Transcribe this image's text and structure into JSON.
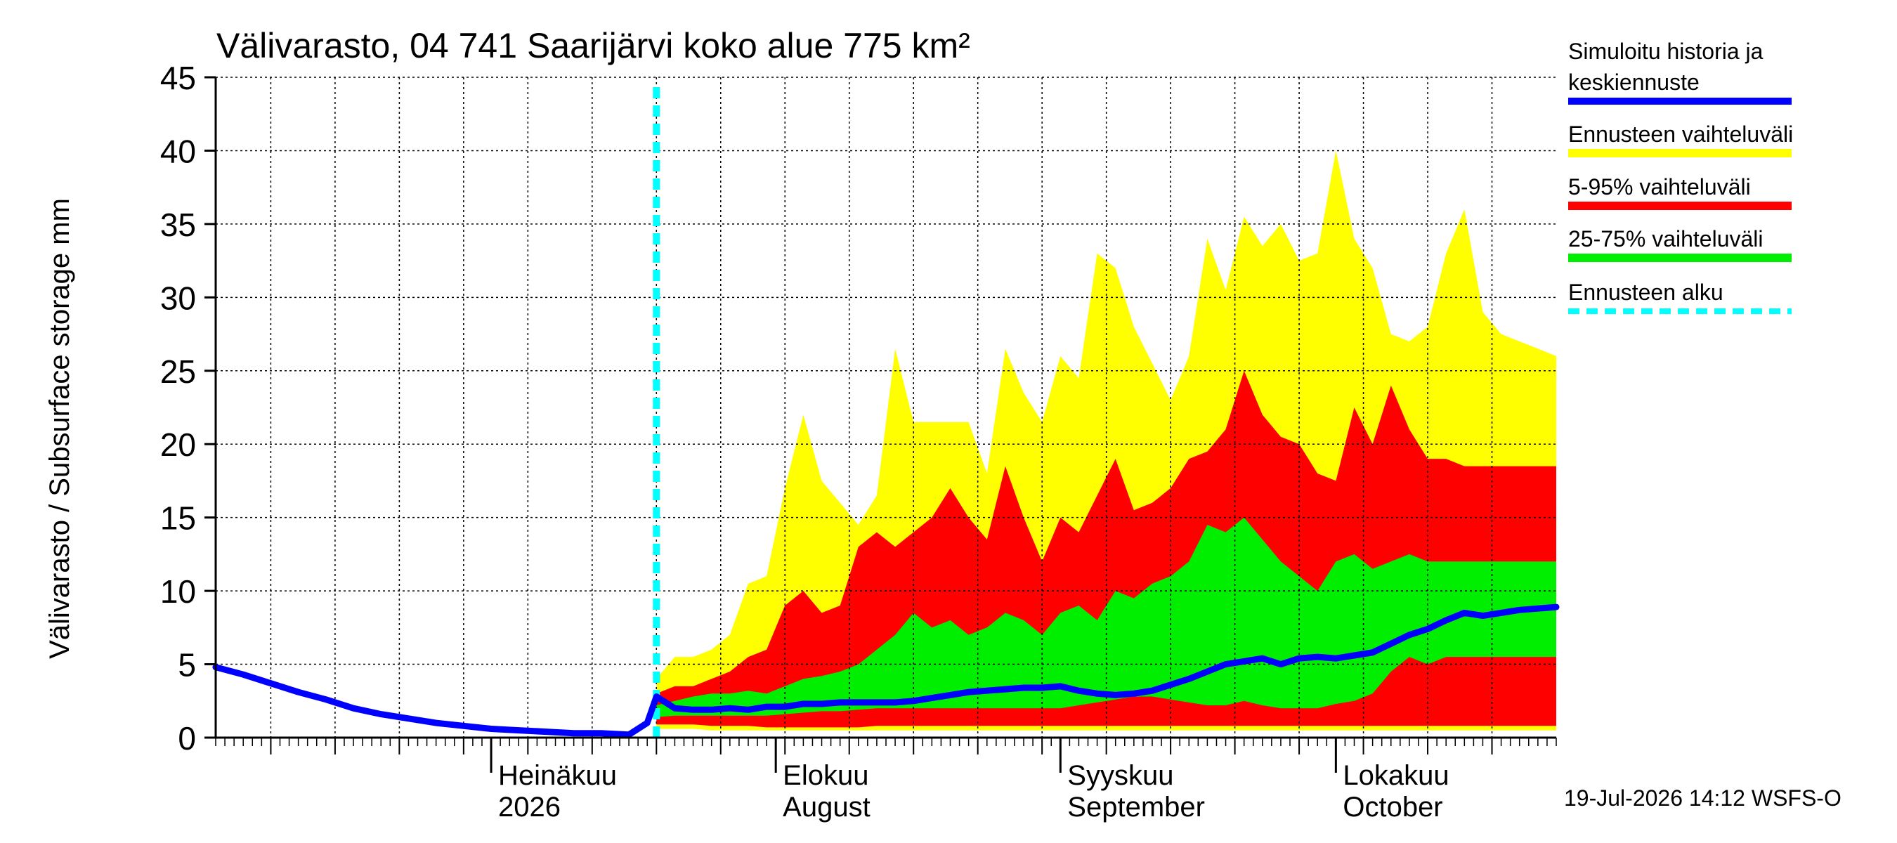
{
  "chart_data": {
    "type": "area",
    "title": "Välivarasto, 04 741 Saarijärvi koko alue 775 km²",
    "ylabel": "Välivarasto / Subsurface storage  mm",
    "ylim": [
      0,
      45
    ],
    "yticks": [
      "0",
      "5",
      "10",
      "15",
      "20",
      "25",
      "30",
      "35",
      "40",
      "45"
    ],
    "xlim": [
      "2026-06-01",
      "2026-10-25"
    ],
    "grid": true,
    "legend_position": "right",
    "forecast_start": "2026-07-19",
    "month_labels": [
      {
        "date": "2026-07-01",
        "line1": "Heinäkuu",
        "line2": "2026"
      },
      {
        "date": "2026-08-01",
        "line1": "Elokuu",
        "line2": "August"
      },
      {
        "date": "2026-09-01",
        "line1": "Syyskuu",
        "line2": "September"
      },
      {
        "date": "2026-10-01",
        "line1": "Lokakuu",
        "line2": "October"
      }
    ],
    "legend": [
      {
        "label": "Simuloitu historia ja",
        "label2": "keskiennuste",
        "color": "#0000ff",
        "style": "solid"
      },
      {
        "label": "Ennusteen vaihteluväli",
        "color": "#ffff00",
        "style": "solid"
      },
      {
        "label": "5-95% vaihteluväli",
        "color": "#ff0000",
        "style": "solid"
      },
      {
        "label": "25-75% vaihteluväli",
        "color": "#00ee00",
        "style": "solid"
      },
      {
        "label": "Ennusteen alku",
        "color": "#00ffff",
        "style": "dashed"
      }
    ],
    "colors": {
      "history": "#0000ff",
      "range_full": "#ffff00",
      "range_5_95": "#ff0000",
      "range_25_75": "#00ee00",
      "forecast_start": "#00ffff"
    },
    "x": [
      "2026-07-19",
      "2026-07-21",
      "2026-07-23",
      "2026-07-25",
      "2026-07-27",
      "2026-07-29",
      "2026-07-31",
      "2026-08-02",
      "2026-08-04",
      "2026-08-06",
      "2026-08-08",
      "2026-08-10",
      "2026-08-12",
      "2026-08-14",
      "2026-08-16",
      "2026-08-18",
      "2026-08-20",
      "2026-08-22",
      "2026-08-24",
      "2026-08-26",
      "2026-08-28",
      "2026-08-30",
      "2026-09-01",
      "2026-09-03",
      "2026-09-05",
      "2026-09-07",
      "2026-09-09",
      "2026-09-11",
      "2026-09-13",
      "2026-09-15",
      "2026-09-17",
      "2026-09-19",
      "2026-09-21",
      "2026-09-23",
      "2026-09-25",
      "2026-09-27",
      "2026-09-29",
      "2026-10-01",
      "2026-10-03",
      "2026-10-05",
      "2026-10-07",
      "2026-10-09",
      "2026-10-11",
      "2026-10-13",
      "2026-10-15",
      "2026-10-17",
      "2026-10-19",
      "2026-10-21",
      "2026-10-23",
      "2026-10-25"
    ],
    "band_full": {
      "upper": [
        4.0,
        5.5,
        5.5,
        6.0,
        7.0,
        10.5,
        11.0,
        17.0,
        22.0,
        17.5,
        16.0,
        14.5,
        16.5,
        26.5,
        21.5,
        21.5,
        21.5,
        21.5,
        18.0,
        26.5,
        23.5,
        21.5,
        26.0,
        24.5,
        33.0,
        32.0,
        28.0,
        25.5,
        23.0,
        26.0,
        34.0,
        30.5,
        35.5,
        33.5,
        35.0,
        32.5,
        33.0,
        40.0,
        34.0,
        32.0,
        27.5,
        27.0,
        28.0,
        33.0,
        36.0,
        29.0,
        27.5,
        27.0,
        26.5,
        26.0
      ],
      "lower": [
        0.6,
        0.6,
        0.6,
        0.5,
        0.5,
        0.5,
        0.5,
        0.5,
        0.5,
        0.5,
        0.5,
        0.5,
        0.5,
        0.5,
        0.5,
        0.5,
        0.5,
        0.5,
        0.5,
        0.5,
        0.5,
        0.5,
        0.5,
        0.5,
        0.5,
        0.5,
        0.5,
        0.5,
        0.5,
        0.5,
        0.5,
        0.5,
        0.5,
        0.5,
        0.5,
        0.5,
        0.5,
        0.5,
        0.5,
        0.5,
        0.5,
        0.5,
        0.5,
        0.5,
        0.5,
        0.5,
        0.5,
        0.5,
        0.5,
        0.5
      ]
    },
    "band_5_95": {
      "upper": [
        3.0,
        3.5,
        3.5,
        4.0,
        4.5,
        5.5,
        6.0,
        9.0,
        10.0,
        8.5,
        9.0,
        13.0,
        14.0,
        13.0,
        14.0,
        15.0,
        17.0,
        15.0,
        13.5,
        18.5,
        15.0,
        12.0,
        15.0,
        14.0,
        16.5,
        19.0,
        15.5,
        16.0,
        17.0,
        19.0,
        19.5,
        21.0,
        25.0,
        22.0,
        20.5,
        20.0,
        18.0,
        17.5,
        22.5,
        20.0,
        24.0,
        21.0,
        19.0,
        19.0,
        18.5,
        18.5,
        18.5,
        18.5,
        18.5,
        18.5
      ],
      "lower": [
        0.9,
        0.9,
        0.9,
        0.8,
        0.8,
        0.8,
        0.7,
        0.7,
        0.7,
        0.7,
        0.7,
        0.7,
        0.8,
        0.8,
        0.8,
        0.8,
        0.8,
        0.8,
        0.8,
        0.8,
        0.8,
        0.8,
        0.8,
        0.8,
        0.8,
        0.8,
        0.8,
        0.8,
        0.8,
        0.8,
        0.8,
        0.8,
        0.8,
        0.8,
        0.8,
        0.8,
        0.8,
        0.8,
        0.8,
        0.8,
        0.8,
        0.8,
        0.8,
        0.8,
        0.8,
        0.8,
        0.8,
        0.8,
        0.8,
        0.8
      ]
    },
    "band_25_75": {
      "upper": [
        2.2,
        2.5,
        2.8,
        3.0,
        3.0,
        3.2,
        3.0,
        3.5,
        4.0,
        4.2,
        4.5,
        5.0,
        6.0,
        7.0,
        8.5,
        7.5,
        8.0,
        7.0,
        7.5,
        8.5,
        8.0,
        7.0,
        8.5,
        9.0,
        8.0,
        10.0,
        9.5,
        10.5,
        11.0,
        12.0,
        14.5,
        14.0,
        15.0,
        13.5,
        12.0,
        11.0,
        10.0,
        12.0,
        12.5,
        11.5,
        12.0,
        12.5,
        12.0,
        12.0,
        12.0,
        12.0,
        12.0,
        12.0,
        12.0,
        12.0
      ],
      "lower": [
        1.4,
        1.5,
        1.5,
        1.5,
        1.5,
        1.5,
        1.5,
        1.6,
        1.7,
        1.8,
        1.8,
        1.9,
        2.0,
        2.0,
        2.0,
        2.0,
        2.0,
        2.0,
        2.0,
        2.0,
        2.0,
        2.0,
        2.0,
        2.2,
        2.4,
        2.6,
        2.8,
        2.8,
        2.6,
        2.4,
        2.2,
        2.2,
        2.5,
        2.2,
        2.0,
        2.0,
        2.0,
        2.3,
        2.5,
        3.0,
        4.5,
        5.5,
        5.0,
        5.5,
        5.5,
        5.5,
        5.5,
        5.5,
        5.5,
        5.5
      ]
    },
    "series": [
      {
        "x": [
          "2026-06-01",
          "2026-06-04",
          "2026-06-07",
          "2026-06-10",
          "2026-06-13",
          "2026-06-16",
          "2026-06-19",
          "2026-06-22",
          "2026-06-25",
          "2026-06-28",
          "2026-07-01",
          "2026-07-04",
          "2026-07-07",
          "2026-07-10",
          "2026-07-13",
          "2026-07-16",
          "2026-07-18",
          "2026-07-19",
          "2026-07-21",
          "2026-07-23",
          "2026-07-25",
          "2026-07-27",
          "2026-07-29",
          "2026-07-31",
          "2026-08-02",
          "2026-08-04",
          "2026-08-06",
          "2026-08-08",
          "2026-08-10",
          "2026-08-12",
          "2026-08-14",
          "2026-08-16",
          "2026-08-18",
          "2026-08-20",
          "2026-08-22",
          "2026-08-24",
          "2026-08-26",
          "2026-08-28",
          "2026-08-30",
          "2026-09-01",
          "2026-09-03",
          "2026-09-05",
          "2026-09-07",
          "2026-09-09",
          "2026-09-11",
          "2026-09-13",
          "2026-09-15",
          "2026-09-17",
          "2026-09-19",
          "2026-09-21",
          "2026-09-23",
          "2026-09-25",
          "2026-09-27",
          "2026-09-29",
          "2026-10-01",
          "2026-10-03",
          "2026-10-05",
          "2026-10-07",
          "2026-10-09",
          "2026-10-11",
          "2026-10-13",
          "2026-10-15",
          "2026-10-17",
          "2026-10-19",
          "2026-10-21",
          "2026-10-23",
          "2026-10-25"
        ],
        "values": [
          4.8,
          4.3,
          3.7,
          3.1,
          2.6,
          2.0,
          1.6,
          1.3,
          1.0,
          0.8,
          0.6,
          0.5,
          0.4,
          0.3,
          0.3,
          0.2,
          1.0,
          2.8,
          2.0,
          1.9,
          1.9,
          2.0,
          1.9,
          2.1,
          2.1,
          2.3,
          2.3,
          2.4,
          2.4,
          2.4,
          2.4,
          2.5,
          2.7,
          2.9,
          3.1,
          3.2,
          3.3,
          3.4,
          3.4,
          3.5,
          3.2,
          3.0,
          2.9,
          3.0,
          3.2,
          3.6,
          4.0,
          4.5,
          5.0,
          5.2,
          5.4,
          5.0,
          5.4,
          5.5,
          5.4,
          5.6,
          5.8,
          6.4,
          7.0,
          7.4,
          8.0,
          8.5,
          8.3,
          8.5,
          8.7,
          8.8,
          8.9
        ]
      }
    ]
  },
  "footer": {
    "timestamp": "19-Jul-2026 14:12 WSFS-O"
  }
}
